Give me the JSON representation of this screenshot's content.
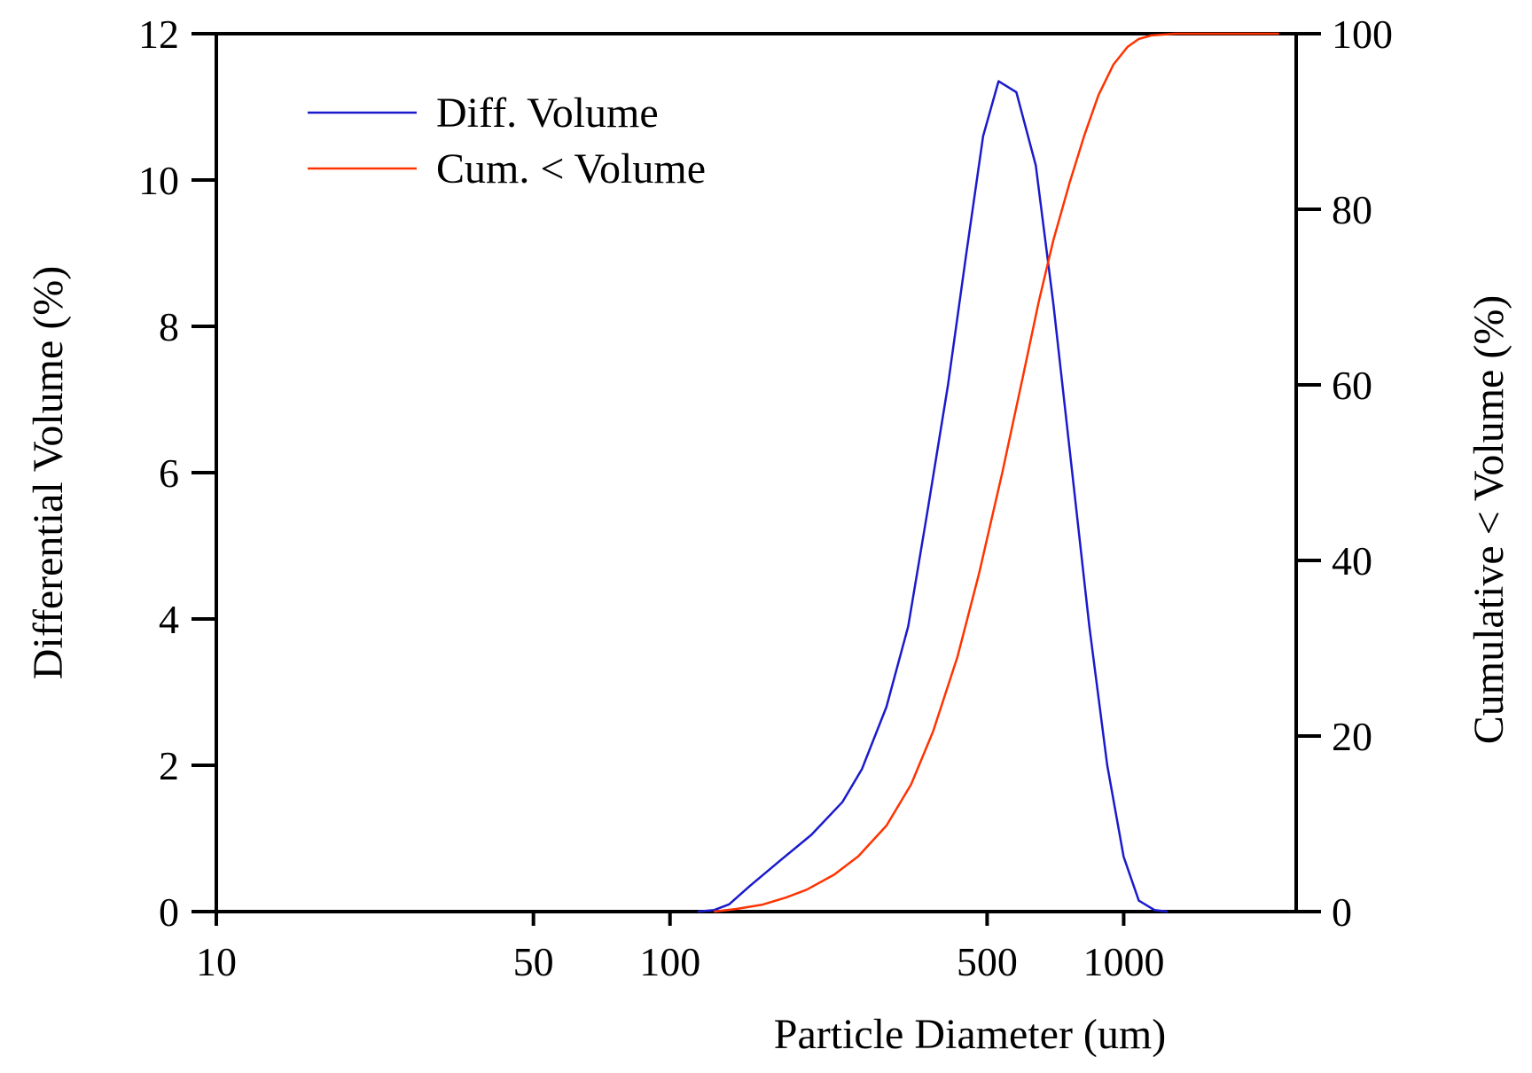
{
  "chart_data": {
    "type": "line",
    "x_scale": "log",
    "xlabel": "Particle Diameter (um)",
    "ylabel_left": "Differential Volume (%)",
    "ylabel_right": "Cumulative < Volume (%)",
    "xlim": [
      10,
      2400
    ],
    "ylim_left": [
      0,
      12
    ],
    "ylim_right": [
      0,
      100
    ],
    "x_ticks": [
      10,
      50,
      100,
      500,
      1000
    ],
    "x_tick_labels": [
      "10",
      "50",
      "100",
      "500",
      "1000"
    ],
    "y_left_ticks": [
      0,
      2,
      4,
      6,
      8,
      10,
      12
    ],
    "y_left_tick_labels": [
      "0",
      "2",
      "4",
      "6",
      "8",
      "10",
      "12"
    ],
    "y_right_ticks": [
      0,
      20,
      40,
      60,
      80,
      100
    ],
    "y_right_tick_labels": [
      "0",
      "20",
      "40",
      "60",
      "80",
      "100"
    ],
    "legend_position": "top-left",
    "grid": false,
    "series": [
      {
        "name": "Diff. Volume",
        "axis": "left",
        "color": "#1a1acc",
        "x": [
          115,
          125,
          135,
          150,
          175,
          205,
          240,
          265,
          300,
          335,
          370,
          410,
          450,
          490,
          530,
          580,
          640,
          700,
          770,
          840,
          920,
          1000,
          1080,
          1170,
          1250
        ],
        "y": [
          0,
          0.02,
          0.1,
          0.35,
          0.7,
          1.05,
          1.5,
          1.95,
          2.8,
          3.9,
          5.5,
          7.2,
          9.0,
          10.6,
          11.35,
          11.2,
          10.2,
          8.3,
          6.0,
          3.9,
          2.0,
          0.75,
          0.15,
          0.02,
          0
        ]
      },
      {
        "name": "Cum. < Volume",
        "axis": "right",
        "color": "#ff3300",
        "x": [
          125,
          140,
          160,
          180,
          200,
          230,
          260,
          300,
          340,
          380,
          430,
          480,
          540,
          600,
          650,
          700,
          760,
          820,
          880,
          950,
          1020,
          1080,
          1150,
          1300,
          1600,
          1900,
          2200
        ],
        "y": [
          0,
          0.3,
          0.8,
          1.6,
          2.5,
          4.2,
          6.3,
          9.8,
          14.5,
          20.5,
          29.0,
          38.5,
          50.0,
          61.0,
          69.5,
          76.5,
          83.0,
          88.5,
          93.0,
          96.5,
          98.5,
          99.4,
          99.8,
          100,
          100,
          100,
          100
        ]
      }
    ]
  }
}
